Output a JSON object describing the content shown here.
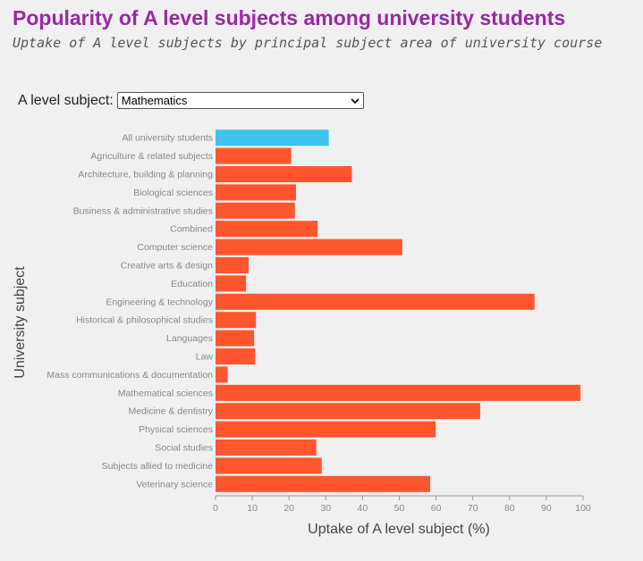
{
  "header": {
    "title": "Popularity of A level subjects among university students",
    "subtitle": "Uptake of A level subjects by principal subject area of university course"
  },
  "control": {
    "label": "A level subject:",
    "selected": "Mathematics"
  },
  "colors": {
    "highlight": "#3bc4f0",
    "bar": "#ff5630",
    "title": "#9b27a6"
  },
  "chart_data": {
    "type": "bar",
    "orientation": "horizontal",
    "xlabel": "Uptake of A level subject (%)",
    "ylabel": "University subject",
    "xlim": [
      0,
      100
    ],
    "xticks": [
      0,
      10,
      20,
      30,
      40,
      50,
      60,
      70,
      80,
      90,
      100
    ],
    "grid": false,
    "highlighted_category": "All university students",
    "categories": [
      "All university students",
      "Agriculture & related subjects",
      "Architecture, building & planning",
      "Biological sciences",
      "Business & administrative studies",
      "Combined",
      "Computer science",
      "Creative arts & design",
      "Education",
      "Engineering & technology",
      "Historical & philosophical studies",
      "Languages",
      "Law",
      "Mass communications & documentation",
      "Mathematical sciences",
      "Medicine & dentistry",
      "Physical sciences",
      "Social studies",
      "Subjects allied to medicine",
      "Veterinary science"
    ],
    "values": [
      30.8,
      20.6,
      37.1,
      21.9,
      21.6,
      27.8,
      50.8,
      9.0,
      8.3,
      86.8,
      11.0,
      10.5,
      10.8,
      3.3,
      99.3,
      72.0,
      59.9,
      27.4,
      28.9,
      58.4
    ]
  }
}
